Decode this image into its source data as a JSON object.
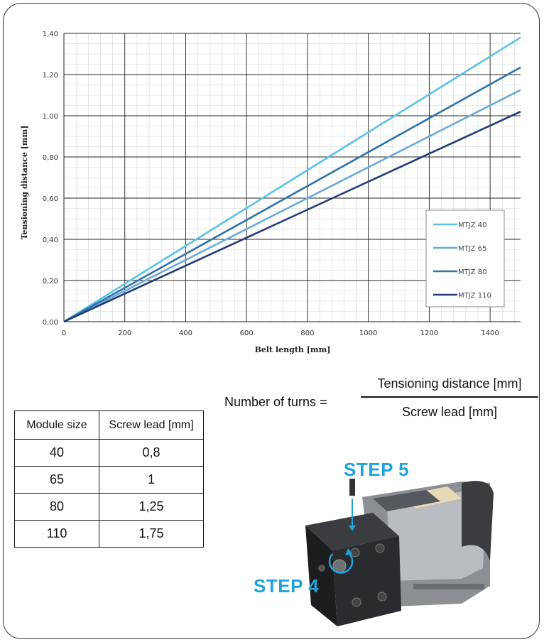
{
  "chart_data": {
    "type": "line",
    "xlabel": "Belt length [mm]",
    "ylabel": "Tensioning distance [mm]",
    "xlim": [
      0,
      1500
    ],
    "ylim": [
      0,
      1.4
    ],
    "x_ticks": [
      "0",
      "200",
      "400",
      "600",
      "800",
      "1000",
      "1200",
      "1400"
    ],
    "y_ticks": [
      "0,00",
      "0,20",
      "0,40",
      "0,60",
      "0,80",
      "1,00",
      "1,20",
      "1,40"
    ],
    "grid": true,
    "legend_position": "right",
    "series": [
      {
        "name": "MTJZ 40",
        "color": "#5bc2e7",
        "x": [
          0,
          1500
        ],
        "y": [
          0,
          1.38
        ]
      },
      {
        "name": "MTJZ 65",
        "color": "#6aa9d8",
        "x": [
          0,
          1500
        ],
        "y": [
          0,
          1.125
        ]
      },
      {
        "name": "MTJZ 80",
        "color": "#2f72a8",
        "x": [
          0,
          1500
        ],
        "y": [
          0,
          1.235
        ]
      },
      {
        "name": "MTJZ 110",
        "color": "#253a78",
        "x": [
          0,
          1500
        ],
        "y": [
          0,
          1.02
        ]
      }
    ]
  },
  "formula": {
    "lhs": "Number of turns =",
    "numerator": "Tensioning distance [mm]",
    "denominator": "Screw lead [mm]"
  },
  "table": {
    "headers": [
      "Module size",
      "Screw lead [mm]"
    ],
    "rows": [
      [
        "40",
        "0,8"
      ],
      [
        "65",
        "1"
      ],
      [
        "80",
        "1,25"
      ],
      [
        "110",
        "1,75"
      ]
    ]
  },
  "steps": {
    "step5": "STEP 5",
    "step4": "STEP 4",
    "color": "#1ea3dc"
  }
}
